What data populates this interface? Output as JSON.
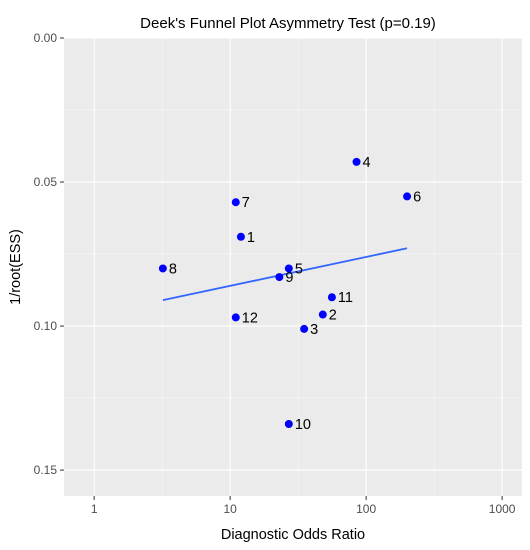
{
  "chart_data": {
    "type": "scatter",
    "title": "Deek's Funnel Plot Asymmetry Test (p=0.19)",
    "xlabel": "Diagnostic Odds Ratio",
    "ylabel": "1/root(ESS)",
    "x_scale": "log10",
    "xlim": [
      0.6,
      1400
    ],
    "ylim": [
      0.0,
      0.159
    ],
    "y_reversed": true,
    "x_ticks": [
      1,
      10,
      100,
      1000
    ],
    "x_tick_labels": [
      "1",
      "10",
      "100",
      "1000"
    ],
    "y_ticks": [
      0.0,
      0.05,
      0.1,
      0.15
    ],
    "y_tick_labels": [
      "0.00",
      "0.05",
      "0.10",
      "0.15"
    ],
    "grid": true,
    "background": "#ebebeb",
    "point_color": "#0000ff",
    "line_color": "#3366ff",
    "points": [
      {
        "label": "1",
        "x": 12,
        "y": 0.069
      },
      {
        "label": "2",
        "x": 48,
        "y": 0.096
      },
      {
        "label": "3",
        "x": 35,
        "y": 0.101
      },
      {
        "label": "4",
        "x": 85,
        "y": 0.043
      },
      {
        "label": "5",
        "x": 27,
        "y": 0.08
      },
      {
        "label": "6",
        "x": 200,
        "y": 0.055
      },
      {
        "label": "7",
        "x": 11,
        "y": 0.057
      },
      {
        "label": "8",
        "x": 3.2,
        "y": 0.08
      },
      {
        "label": "9",
        "x": 23,
        "y": 0.083
      },
      {
        "label": "10",
        "x": 27,
        "y": 0.134
      },
      {
        "label": "11",
        "x": 56,
        "y": 0.09
      },
      {
        "label": "12",
        "x": 11,
        "y": 0.097
      }
    ],
    "regression_line": {
      "x": [
        3.2,
        200
      ],
      "y": [
        0.091,
        0.073
      ]
    }
  }
}
